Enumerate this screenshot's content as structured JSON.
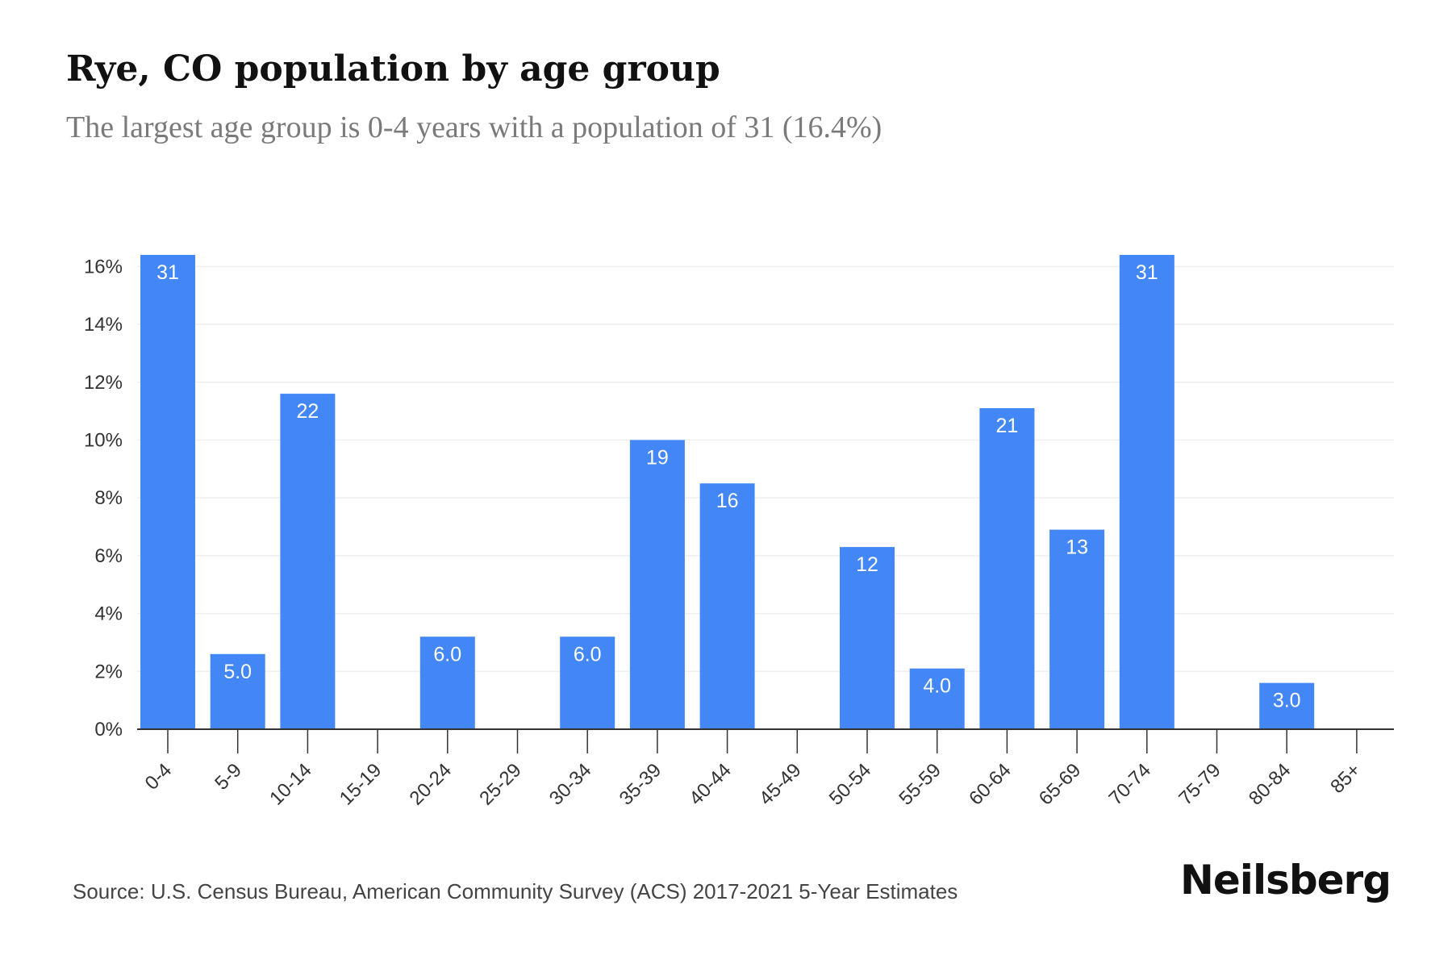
{
  "header": {
    "title": "Rye, CO population by age group",
    "subtitle": "The largest age group is 0-4 years with a population of 31 (16.4%)"
  },
  "footer": {
    "source": "Source: U.S. Census Bureau, American Community Survey (ACS) 2017-2021 5-Year Estimates",
    "brand": "Neilsberg"
  },
  "colors": {
    "bar": "#4287f5",
    "grid": "#eeeeee",
    "axis": "#333333"
  },
  "chart_data": {
    "type": "bar",
    "categories": [
      "0-4",
      "5-9",
      "10-14",
      "15-19",
      "20-24",
      "25-29",
      "30-34",
      "35-39",
      "40-44",
      "45-49",
      "50-54",
      "55-59",
      "60-64",
      "65-69",
      "70-74",
      "75-79",
      "80-84",
      "85+"
    ],
    "values": [
      16.4,
      2.6,
      11.6,
      0,
      3.2,
      0,
      3.2,
      10.0,
      8.5,
      0,
      6.3,
      2.1,
      11.1,
      6.9,
      16.4,
      0,
      1.6,
      0
    ],
    "data_labels": [
      "31",
      "5.0",
      "22",
      "",
      "6.0",
      "",
      "6.0",
      "19",
      "16",
      "",
      "12",
      "4.0",
      "21",
      "13",
      "31",
      "",
      "3.0",
      ""
    ],
    "yticks": [
      0,
      2,
      4,
      6,
      8,
      10,
      12,
      14,
      16
    ],
    "ytick_labels": [
      "0%",
      "2%",
      "4%",
      "6%",
      "8%",
      "10%",
      "12%",
      "14%",
      "16%"
    ],
    "ylim": [
      0,
      16.4
    ],
    "grid": true,
    "xlabel": "",
    "ylabel": ""
  }
}
